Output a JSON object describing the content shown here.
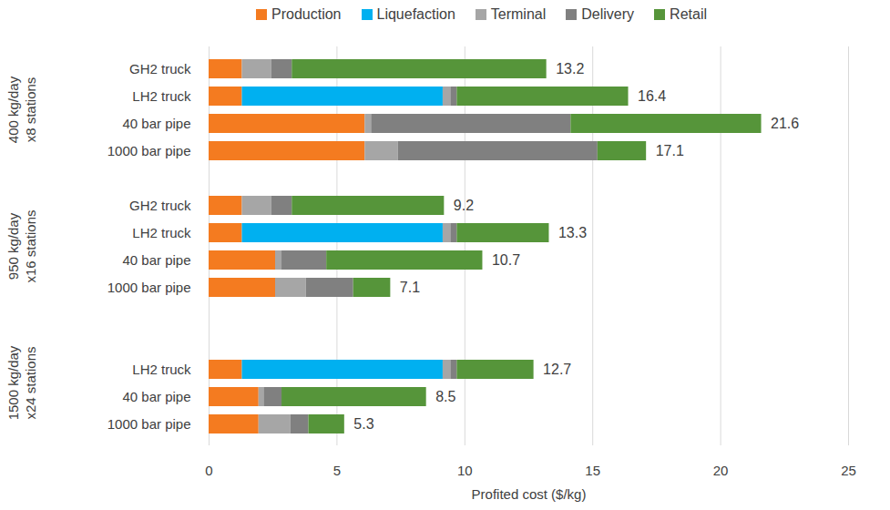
{
  "chart_data": {
    "type": "bar",
    "orientation": "horizontal",
    "stacked": true,
    "legend": "top",
    "grid": true,
    "xlabel": "Profited cost ($/kg)",
    "xlim": [
      0,
      25
    ],
    "xticks": [
      0,
      5,
      10,
      15,
      20,
      25
    ],
    "categories": [
      "GH2 truck",
      "LH2 truck",
      "40 bar pipe",
      "1000 bar pipe",
      "GH2 truck",
      "LH2 truck",
      "40 bar pipe",
      "1000 bar pipe",
      null,
      "LH2 truck",
      "40 bar pipe",
      "1000 bar pipe"
    ],
    "groups": [
      "400 kg/day\nx8 stations",
      "400 kg/day\nx8 stations",
      "400 kg/day\nx8 stations",
      "400 kg/day\nx8 stations",
      "950 kg/day\nx16 stations",
      "950 kg/day\nx16 stations",
      "950 kg/day\nx16 stations",
      "950 kg/day\nx16 stations",
      "1500 kg/day\nx24 stations",
      "1500 kg/day\nx24 stations",
      "1500 kg/day\nx24 stations",
      "1500 kg/day\nx24 stations"
    ],
    "series": [
      {
        "name": "Production",
        "color": "#f47b20",
        "values": [
          1.3,
          1.3,
          6.1,
          6.1,
          1.3,
          1.3,
          2.6,
          2.6,
          null,
          1.3,
          1.95,
          1.95
        ]
      },
      {
        "name": "Liquefaction",
        "color": "#00b0f0",
        "values": [
          0,
          7.85,
          0,
          0,
          0,
          7.85,
          0,
          0,
          null,
          7.85,
          0,
          0
        ]
      },
      {
        "name": "Terminal",
        "color": "#a6a6a6",
        "values": [
          1.15,
          0.3,
          0.25,
          1.3,
          1.15,
          0.3,
          0.25,
          1.2,
          null,
          0.3,
          0.2,
          1.25
        ]
      },
      {
        "name": "Delivery",
        "color": "#808080",
        "values": [
          0.8,
          0.25,
          7.8,
          7.8,
          0.8,
          0.25,
          1.75,
          1.85,
          null,
          0.25,
          0.7,
          0.7
        ]
      },
      {
        "name": "Retail",
        "color": "#56953a",
        "values": [
          9.95,
          6.7,
          7.45,
          1.9,
          5.95,
          3.6,
          6.1,
          1.45,
          null,
          3.0,
          5.65,
          1.4
        ]
      }
    ],
    "totals": [
      13.2,
      16.4,
      21.6,
      17.1,
      9.2,
      13.3,
      10.7,
      7.1,
      null,
      12.7,
      8.5,
      5.3
    ]
  }
}
